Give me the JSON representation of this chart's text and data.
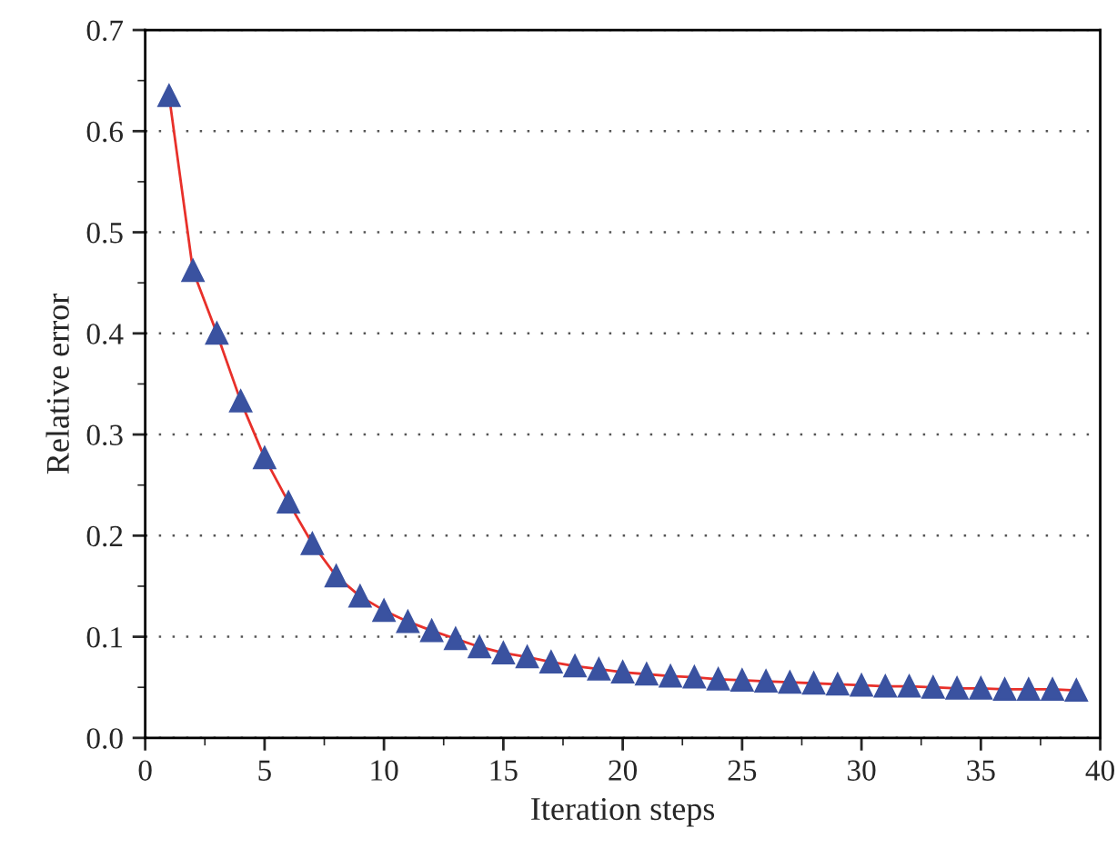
{
  "chart_data": {
    "type": "line",
    "xlabel": "Iteration steps",
    "ylabel": "Relative error",
    "x": [
      1,
      2,
      3,
      4,
      5,
      6,
      7,
      8,
      9,
      10,
      11,
      12,
      13,
      14,
      15,
      16,
      17,
      18,
      19,
      20,
      21,
      22,
      23,
      24,
      25,
      26,
      27,
      28,
      29,
      30,
      31,
      32,
      33,
      34,
      35,
      36,
      37,
      38,
      39
    ],
    "series": [
      {
        "marker": "none",
        "color": "#e8302a",
        "values": [
          0.635,
          0.462,
          0.4,
          0.333,
          0.277,
          0.233,
          0.192,
          0.16,
          0.14,
          0.126,
          0.115,
          0.106,
          0.098,
          0.09,
          0.084,
          0.08,
          0.075,
          0.071,
          0.068,
          0.065,
          0.063,
          0.061,
          0.06,
          0.058,
          0.057,
          0.056,
          0.055,
          0.054,
          0.053,
          0.052,
          0.051,
          0.051,
          0.05,
          0.049,
          0.049,
          0.048,
          0.048,
          0.048,
          0.047
        ]
      },
      {
        "type": "scatter",
        "marker": "triangle",
        "color": "#3a52a0",
        "values": [
          0.635,
          0.462,
          0.4,
          0.333,
          0.277,
          0.233,
          0.192,
          0.16,
          0.14,
          0.126,
          0.115,
          0.106,
          0.098,
          0.09,
          0.084,
          0.08,
          0.075,
          0.071,
          0.068,
          0.065,
          0.063,
          0.061,
          0.06,
          0.058,
          0.057,
          0.056,
          0.055,
          0.054,
          0.053,
          0.052,
          0.051,
          0.051,
          0.05,
          0.049,
          0.049,
          0.048,
          0.048,
          0.048,
          0.047
        ]
      }
    ],
    "xlim": [
      0,
      40
    ],
    "xticks": [
      0,
      5,
      10,
      15,
      20,
      25,
      30,
      35,
      40
    ],
    "ylim": [
      0.0,
      0.7
    ],
    "yticks": [
      {
        "value": 0.0,
        "label": "0.0"
      },
      {
        "value": 0.1,
        "label": "0.1"
      },
      {
        "value": 0.2,
        "label": "0.2"
      },
      {
        "value": 0.3,
        "label": "0.3"
      },
      {
        "value": 0.4,
        "label": "0.4"
      },
      {
        "value": 0.5,
        "label": "0.5"
      },
      {
        "value": 0.6,
        "label": "0.6"
      },
      {
        "value": 0.7,
        "label": "0.7"
      }
    ],
    "grid": "y",
    "line_style": "solid",
    "legend": false
  }
}
